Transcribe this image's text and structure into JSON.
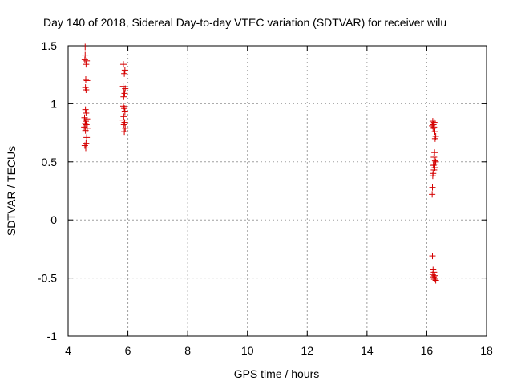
{
  "chart_data": {
    "type": "scatter",
    "title": "Day 140 of 2018, Sidereal Day-to-day VTEC variation (SDTVAR) for receiver wilu",
    "xlabel": "GPS time / hours",
    "ylabel": "SDTVAR / TECUs",
    "xlim": [
      4,
      18
    ],
    "ylim": [
      -1,
      1.5
    ],
    "xticks": [
      4,
      6,
      8,
      10,
      12,
      14,
      16,
      18
    ],
    "xtick_labels": [
      "4",
      "6",
      "8",
      "10",
      "12",
      "14",
      "16",
      "18"
    ],
    "yticks": [
      -1,
      -0.5,
      0,
      0.5,
      1,
      1.5
    ],
    "ytick_labels": [
      "-1",
      "-0.5",
      "0",
      "0.5",
      "1",
      "1.5"
    ],
    "grid": true,
    "marker": "+",
    "color": "#d40000",
    "series": [
      {
        "name": "SDTVAR",
        "points": [
          [
            4.57,
            1.49
          ],
          [
            4.57,
            1.42
          ],
          [
            4.56,
            1.38
          ],
          [
            4.62,
            1.37
          ],
          [
            4.6,
            1.34
          ],
          [
            4.59,
            1.21
          ],
          [
            4.63,
            1.2
          ],
          [
            4.58,
            1.14
          ],
          [
            4.6,
            1.12
          ],
          [
            4.58,
            0.95
          ],
          [
            4.6,
            0.92
          ],
          [
            4.55,
            0.88
          ],
          [
            4.63,
            0.87
          ],
          [
            4.59,
            0.85
          ],
          [
            4.57,
            0.83
          ],
          [
            4.61,
            0.82
          ],
          [
            4.54,
            0.8
          ],
          [
            4.64,
            0.79
          ],
          [
            4.58,
            0.77
          ],
          [
            4.62,
            0.71
          ],
          [
            4.6,
            0.66
          ],
          [
            4.56,
            0.64
          ],
          [
            4.59,
            0.62
          ],
          [
            5.85,
            1.34
          ],
          [
            5.9,
            1.29
          ],
          [
            5.88,
            1.26
          ],
          [
            5.84,
            1.15
          ],
          [
            5.91,
            1.13
          ],
          [
            5.87,
            1.11
          ],
          [
            5.89,
            1.09
          ],
          [
            5.86,
            1.06
          ],
          [
            5.85,
            0.98
          ],
          [
            5.88,
            0.96
          ],
          [
            5.9,
            0.93
          ],
          [
            5.86,
            0.89
          ],
          [
            5.84,
            0.86
          ],
          [
            5.89,
            0.84
          ],
          [
            5.87,
            0.82
          ],
          [
            5.91,
            0.79
          ],
          [
            5.88,
            0.76
          ],
          [
            16.2,
            0.85
          ],
          [
            16.25,
            0.84
          ],
          [
            16.22,
            0.82
          ],
          [
            16.18,
            0.81
          ],
          [
            16.24,
            0.8
          ],
          [
            16.21,
            0.79
          ],
          [
            16.27,
            0.76
          ],
          [
            16.3,
            0.72
          ],
          [
            16.28,
            0.7
          ],
          [
            16.26,
            0.58
          ],
          [
            16.24,
            0.54
          ],
          [
            16.28,
            0.51
          ],
          [
            16.3,
            0.5
          ],
          [
            16.25,
            0.48
          ],
          [
            16.22,
            0.47
          ],
          [
            16.27,
            0.45
          ],
          [
            16.24,
            0.43
          ],
          [
            16.21,
            0.4
          ],
          [
            16.2,
            0.38
          ],
          [
            16.19,
            0.28
          ],
          [
            16.18,
            0.22
          ],
          [
            16.19,
            -0.31
          ],
          [
            16.21,
            -0.43
          ],
          [
            16.24,
            -0.45
          ],
          [
            16.2,
            -0.47
          ],
          [
            16.26,
            -0.48
          ],
          [
            16.23,
            -0.49
          ],
          [
            16.28,
            -0.5
          ],
          [
            16.25,
            -0.51
          ],
          [
            16.3,
            -0.52
          ]
        ]
      }
    ]
  }
}
